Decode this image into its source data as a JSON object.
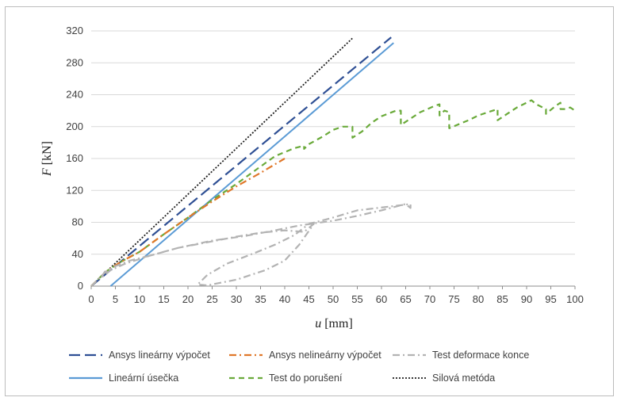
{
  "chart_data": {
    "type": "line",
    "title": "",
    "xlabel_var": "u",
    "xlabel_unit": "[mm]",
    "ylabel_var": "F",
    "ylabel_unit": "[kN]",
    "xlim": [
      0,
      100
    ],
    "ylim": [
      0,
      320
    ],
    "x_ticks": [
      "0",
      "5",
      "10",
      "15",
      "20",
      "25",
      "30",
      "35",
      "40",
      "45",
      "50",
      "55",
      "60",
      "65",
      "70",
      "75",
      "80",
      "85",
      "90",
      "95",
      "100"
    ],
    "y_ticks": [
      "0",
      "40",
      "80",
      "120",
      "160",
      "200",
      "240",
      "280",
      "320"
    ],
    "grid": "horizontal",
    "legend_position": "bottom",
    "series": [
      {
        "name": "Ansys lineárny výpočet",
        "color": "#2e4f94",
        "style": "longdash",
        "points": [
          [
            0,
            0
          ],
          [
            62,
            312
          ]
        ]
      },
      {
        "name": "Ansys nelineárny výpočet",
        "color": "#e0782a",
        "style": "dashdot",
        "points": [
          [
            0,
            0
          ],
          [
            3,
            18
          ],
          [
            6,
            30
          ],
          [
            10,
            43
          ],
          [
            15,
            65
          ],
          [
            20,
            86
          ],
          [
            25,
            106
          ],
          [
            30,
            125
          ],
          [
            35,
            142
          ],
          [
            40,
            160
          ]
        ]
      },
      {
        "name": "Test deformace konce",
        "color": "#b3b3b3",
        "style": "dashdot",
        "points": [
          [
            0,
            0
          ],
          [
            3,
            18
          ],
          [
            5,
            25
          ],
          [
            8,
            32
          ],
          [
            12,
            38
          ],
          [
            18,
            48
          ],
          [
            25,
            57
          ],
          [
            32,
            63
          ],
          [
            38,
            70
          ],
          [
            43,
            76
          ],
          [
            50,
            82
          ],
          [
            55,
            88
          ],
          [
            60,
            95
          ],
          [
            65,
            103
          ],
          [
            66,
            98
          ],
          [
            66,
            103
          ],
          [
            62,
            100
          ],
          [
            55,
            95
          ],
          [
            50,
            86
          ],
          [
            45,
            78
          ],
          [
            42,
            64
          ],
          [
            38,
            52
          ],
          [
            34,
            42
          ],
          [
            28,
            28
          ],
          [
            24,
            14
          ],
          [
            22,
            2
          ],
          [
            24,
            1
          ],
          [
            30,
            8
          ],
          [
            36,
            20
          ],
          [
            40,
            32
          ],
          [
            43,
            52
          ],
          [
            46,
            78
          ],
          [
            44,
            68
          ],
          [
            40,
            70
          ],
          [
            35,
            67
          ],
          [
            30,
            62
          ],
          [
            24,
            55
          ],
          [
            18,
            48
          ],
          [
            12,
            38
          ],
          [
            7,
            28
          ],
          [
            4,
            20
          ],
          [
            2,
            10
          ],
          [
            3,
            20
          ]
        ]
      },
      {
        "name": "Lineární úsečka",
        "color": "#5b9bd5",
        "style": "solid",
        "points": [
          [
            4,
            0
          ],
          [
            62.5,
            305
          ]
        ]
      },
      {
        "name": "Test do porušení",
        "color": "#6aaa3a",
        "style": "dash",
        "points": [
          [
            0,
            0
          ],
          [
            3,
            18
          ],
          [
            6,
            30
          ],
          [
            10,
            43
          ],
          [
            15,
            65
          ],
          [
            20,
            86
          ],
          [
            25,
            108
          ],
          [
            30,
            128
          ],
          [
            35,
            150
          ],
          [
            38,
            163
          ],
          [
            42,
            173
          ],
          [
            44,
            176
          ],
          [
            44,
            172
          ],
          [
            45,
            178
          ],
          [
            48,
            188
          ],
          [
            50,
            196
          ],
          [
            52,
            200
          ],
          [
            54,
            200
          ],
          [
            54,
            186
          ],
          [
            56,
            194
          ],
          [
            58,
            205
          ],
          [
            60,
            213
          ],
          [
            63,
            220
          ],
          [
            64,
            220
          ],
          [
            64,
            202
          ],
          [
            66,
            210
          ],
          [
            68,
            218
          ],
          [
            71,
            226
          ],
          [
            72,
            228
          ],
          [
            72,
            214
          ],
          [
            73,
            220
          ],
          [
            74,
            218
          ],
          [
            74,
            198
          ],
          [
            76,
            203
          ],
          [
            78,
            208
          ],
          [
            80,
            214
          ],
          [
            82,
            218
          ],
          [
            84,
            222
          ],
          [
            84,
            208
          ],
          [
            86,
            216
          ],
          [
            88,
            224
          ],
          [
            90,
            230
          ],
          [
            91,
            233
          ],
          [
            92,
            228
          ],
          [
            94,
            222
          ],
          [
            94,
            216
          ],
          [
            96,
            226
          ],
          [
            97,
            230
          ],
          [
            97,
            222
          ],
          [
            98,
            222
          ],
          [
            99,
            224
          ],
          [
            100,
            220
          ]
        ]
      },
      {
        "name": "Silová metóda",
        "color": "#1e1e1e",
        "style": "dot",
        "points": [
          [
            0,
            0
          ],
          [
            54.2,
            312
          ]
        ]
      }
    ]
  }
}
